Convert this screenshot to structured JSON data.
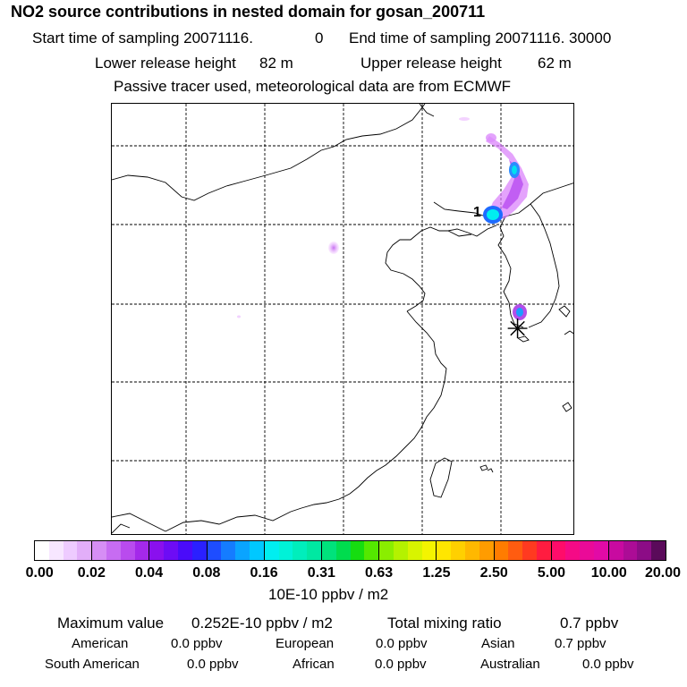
{
  "header": {
    "title": "NO2 source contributions in nested domain for gosan_200711",
    "start_label": "Start time of sampling 20071116.",
    "start_hour": "0",
    "end_label": "End time of sampling 20071116. 30000",
    "lower_label": "Lower release height",
    "lower_value": "82 m",
    "upper_label": "Upper release height",
    "upper_value": "62 m",
    "tracer_note": "Passive tracer used, meteorological data are from ECMWF"
  },
  "map": {
    "release_marker_label": "1",
    "release_site_symbol": "✳"
  },
  "colorbar": {
    "ticks": [
      "0.00",
      "0.02",
      "0.04",
      "0.08",
      "0.16",
      "0.31",
      "0.63",
      "1.25",
      "2.50",
      "5.00",
      "10.00",
      "20.00"
    ],
    "units": "10E-10 ppbv / m2",
    "colors": [
      [
        "#ffffff",
        "#f7e6ff",
        "#eecbff",
        "#e2aef9"
      ],
      [
        "#d68ef5",
        "#c76cf2",
        "#b94bee",
        "#a429ea"
      ],
      [
        "#8a10ee",
        "#6d0cf5",
        "#4a0bfa",
        "#2a20ff"
      ],
      [
        "#1e4dff",
        "#157cff",
        "#0aa4ff",
        "#00c8ff"
      ],
      [
        "#00eef0",
        "#00f2d8",
        "#00eebc",
        "#00e8a2"
      ],
      [
        "#00e27c",
        "#00dc4e",
        "#16dd10",
        "#54e800"
      ],
      [
        "#8aee00",
        "#b4f200",
        "#d8f400",
        "#f4f400"
      ],
      [
        "#ffe600",
        "#ffd000",
        "#ffb800",
        "#ff9c00"
      ],
      [
        "#ff7c00",
        "#ff5c10",
        "#ff3a20",
        "#ff1c40"
      ],
      [
        "#ff0c6a",
        "#f50a86",
        "#ea0a98",
        "#e20aa6"
      ],
      [
        "#c80aa0",
        "#ac0c96",
        "#8c0c86",
        "#5a0a5a"
      ]
    ]
  },
  "stats": {
    "max_label": "Maximum value",
    "max_value": "0.252E-10 ppbv / m2",
    "total_label": "Total mixing ratio",
    "total_value": "0.7 ppbv",
    "regions": [
      {
        "name": "American",
        "value": "0.0 ppbv"
      },
      {
        "name": "European",
        "value": "0.0 ppbv"
      },
      {
        "name": "Asian",
        "value": "0.7 ppbv"
      },
      {
        "name": "South American",
        "value": "0.0 ppbv"
      },
      {
        "name": "African",
        "value": "0.0 ppbv"
      },
      {
        "name": "Australian",
        "value": "0.0 ppbv"
      }
    ]
  }
}
